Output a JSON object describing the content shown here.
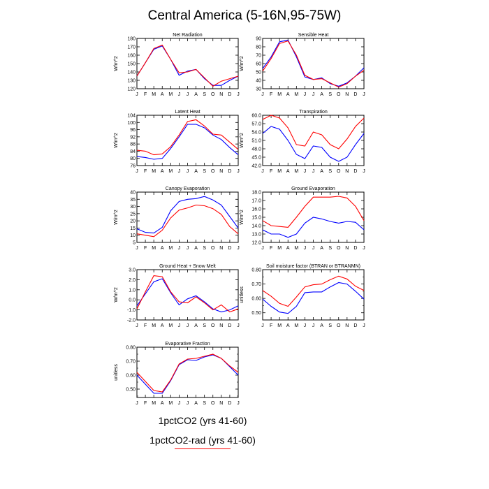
{
  "title": "Central America (5-16N,95-75W)",
  "months": [
    "J",
    "F",
    "M",
    "A",
    "M",
    "J",
    "J",
    "A",
    "S",
    "O",
    "N",
    "D",
    "J"
  ],
  "colors": {
    "series1": "#0000ff",
    "series2": "#ff0000"
  },
  "legend": {
    "entries": [
      "1pctCO2 (yrs 41-60)",
      "1pctCO2-rad (yrs 41-60)"
    ]
  },
  "chart_data": [
    {
      "type": "line",
      "title": "Net Radiation",
      "ylabel": "W/m^2",
      "ylim": [
        120,
        180
      ],
      "yticks": [
        120,
        130,
        140,
        150,
        160,
        170,
        180
      ],
      "ytick_labels": [
        "120",
        "130",
        "140",
        "150",
        "160",
        "170",
        "180"
      ],
      "series": [
        {
          "values": [
            135,
            151,
            167,
            171,
            155,
            136,
            141,
            143,
            132,
            124,
            124,
            130,
            135
          ]
        },
        {
          "values": [
            135,
            151,
            168,
            172,
            155,
            139,
            140,
            143,
            133,
            123,
            129,
            132,
            135
          ]
        }
      ]
    },
    {
      "type": "line",
      "title": "Sensible Heat",
      "ylabel": "W/m^2",
      "ylim": [
        30,
        90
      ],
      "yticks": [
        30,
        40,
        50,
        60,
        70,
        80,
        90
      ],
      "ytick_labels": [
        "30",
        "40",
        "50",
        "60",
        "70",
        "80",
        "90"
      ],
      "series": [
        {
          "values": [
            54,
            68,
            86,
            88,
            68,
            44,
            41,
            43,
            36,
            33,
            37,
            45,
            55
          ]
        },
        {
          "values": [
            51,
            66,
            84,
            87,
            70,
            46,
            41,
            42,
            37,
            32,
            36,
            45,
            52
          ]
        }
      ]
    },
    {
      "type": "line",
      "title": "Latent Heat",
      "ylabel": "W/m^2",
      "ylim": [
        76,
        104
      ],
      "yticks": [
        76,
        80,
        84,
        88,
        92,
        96,
        100,
        104
      ],
      "ytick_labels": [
        "76",
        "80",
        "84",
        "88",
        "92",
        "96",
        "100",
        "104"
      ],
      "series": [
        {
          "values": [
            81,
            80.5,
            79.5,
            80,
            85.5,
            92,
            99,
            99,
            97,
            93,
            90.5,
            86,
            82
          ]
        },
        {
          "values": [
            84.5,
            84,
            82,
            82.5,
            86.5,
            93,
            100.5,
            101.5,
            98,
            93.5,
            93,
            89,
            85
          ]
        }
      ]
    },
    {
      "type": "line",
      "title": "Transpiration",
      "ylabel": "W/m^2",
      "ylim": [
        42,
        60
      ],
      "yticks": [
        42,
        45,
        48,
        51,
        54,
        57,
        60
      ],
      "ytick_labels": [
        "42.0",
        "45.0",
        "48.0",
        "51.0",
        "54.0",
        "57.0",
        "60.0"
      ],
      "series": [
        {
          "values": [
            53.5,
            56,
            55,
            51,
            46,
            44.5,
            49,
            48.5,
            45,
            43.5,
            45,
            49.5,
            53.5
          ]
        },
        {
          "values": [
            58.5,
            60,
            59,
            55.5,
            49.5,
            49,
            54,
            53,
            49.5,
            48,
            51.5,
            56,
            59
          ]
        }
      ]
    },
    {
      "type": "line",
      "title": "Canopy Evaporation",
      "ylabel": "W/m^2",
      "ylim": [
        5,
        40
      ],
      "yticks": [
        5,
        10,
        15,
        20,
        25,
        30,
        35,
        40
      ],
      "ytick_labels": [
        "5",
        "10",
        "15",
        "20",
        "25",
        "30",
        "35",
        "40"
      ],
      "series": [
        {
          "values": [
            14.5,
            12,
            11.5,
            15.5,
            27,
            33.5,
            35,
            35.5,
            37,
            34.5,
            31,
            23,
            15
          ]
        },
        {
          "values": [
            11,
            10,
            9,
            13.5,
            22,
            27.5,
            29,
            31,
            30.5,
            28.5,
            24.5,
            16,
            11
          ]
        }
      ]
    },
    {
      "type": "line",
      "title": "Ground Evaporation",
      "ylabel": "W/m^2",
      "ylim": [
        12,
        18
      ],
      "yticks": [
        12,
        13,
        14,
        15,
        16,
        17,
        18
      ],
      "ytick_labels": [
        "12.0",
        "13.0",
        "14.0",
        "15.0",
        "16.0",
        "17.0",
        "18.0"
      ],
      "series": [
        {
          "values": [
            13.5,
            13,
            13,
            12.6,
            13,
            14.3,
            15,
            14.8,
            14.5,
            14.3,
            14.5,
            14.4,
            13.5
          ]
        },
        {
          "values": [
            14.6,
            14,
            13.9,
            13.8,
            15,
            16.3,
            17.4,
            17.4,
            17.4,
            17.5,
            17.3,
            16.3,
            14.6
          ]
        }
      ]
    },
    {
      "type": "line",
      "title": "Ground Heat + Snow Melt",
      "ylabel": "W/m^2",
      "ylim": [
        -2,
        3
      ],
      "yticks": [
        -2,
        -1,
        0,
        1,
        2,
        3
      ],
      "ytick_labels": [
        "-2.0",
        "-1.0",
        "0.0",
        "1.0",
        "2.0",
        "3.0"
      ],
      "series": [
        {
          "values": [
            -0.6,
            0.6,
            1.8,
            2.1,
            0.7,
            -0.5,
            0.1,
            0.4,
            -0.2,
            -0.9,
            -1.2,
            -1,
            -0.6
          ]
        },
        {
          "values": [
            -0.9,
            0.8,
            2.4,
            2.3,
            0.8,
            -0.2,
            -0.3,
            0.3,
            -0.3,
            -1,
            -0.5,
            -1.2,
            -0.9
          ]
        }
      ]
    },
    {
      "type": "line",
      "title": "Soil moisture factor (BTRAN or BTRANMN)",
      "ylabel": "unitless",
      "ylim": [
        0.45,
        0.8
      ],
      "yticks": [
        0.5,
        0.6,
        0.7,
        0.8
      ],
      "ytick_labels": [
        "0.50",
        "0.60",
        "0.70",
        "0.80"
      ],
      "minor": [
        0.45,
        0.55,
        0.65,
        0.75
      ],
      "series": [
        {
          "values": [
            0.595,
            0.545,
            0.505,
            0.495,
            0.545,
            0.64,
            0.645,
            0.645,
            0.68,
            0.71,
            0.7,
            0.65,
            0.595
          ]
        },
        {
          "values": [
            0.655,
            0.615,
            0.565,
            0.545,
            0.61,
            0.68,
            0.695,
            0.7,
            0.73,
            0.755,
            0.735,
            0.685,
            0.655
          ]
        }
      ]
    },
    {
      "type": "line",
      "title": "Evaporative Fraction",
      "ylabel": "unitless",
      "ylim": [
        0.44,
        0.8
      ],
      "yticks": [
        0.5,
        0.6,
        0.7,
        0.8
      ],
      "ytick_labels": [
        "0.50",
        "0.60",
        "0.70",
        "0.80"
      ],
      "minor": [
        0.45,
        0.55,
        0.65,
        0.75
      ],
      "series": [
        {
          "values": [
            0.6,
            0.535,
            0.47,
            0.47,
            0.56,
            0.675,
            0.71,
            0.705,
            0.73,
            0.745,
            0.72,
            0.66,
            0.6
          ]
        },
        {
          "values": [
            0.62,
            0.555,
            0.49,
            0.48,
            0.565,
            0.68,
            0.715,
            0.72,
            0.735,
            0.75,
            0.72,
            0.665,
            0.62
          ]
        }
      ]
    }
  ]
}
